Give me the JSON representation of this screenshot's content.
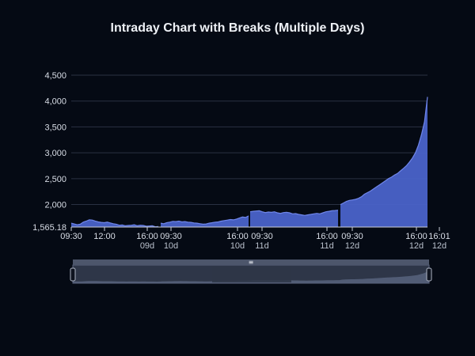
{
  "chart_data": {
    "type": "area",
    "title": "Intraday Chart with Breaks (Multiple Days)",
    "xlabel": "",
    "ylabel": "",
    "grid": true,
    "legend": "none",
    "ylim": [
      1565.18,
      4500
    ],
    "ymin_label": "1,565.18",
    "y_ticks": [
      "4,500",
      "4,000",
      "3,500",
      "3,000",
      "2,500",
      "2,000",
      "1,565.18"
    ],
    "x_ticks": [
      {
        "label": "09:30",
        "sub": ""
      },
      {
        "label": "12:00",
        "sub": ""
      },
      {
        "label": "16:00",
        "sub": "09d"
      },
      {
        "label": "09:30",
        "sub": "10d"
      },
      {
        "label": "16:00",
        "sub": "10d"
      },
      {
        "label": "09:30",
        "sub": "11d"
      },
      {
        "label": "16:00",
        "sub": "11d"
      },
      {
        "label": "09:30",
        "sub": "12d"
      },
      {
        "label": "16:00",
        "sub": "12d"
      },
      {
        "label": "16:01",
        "sub": "12d"
      }
    ],
    "series": [
      {
        "day": "09d",
        "values": [
          1640,
          1625,
          1610,
          1620,
          1660,
          1680,
          1705,
          1700,
          1680,
          1665,
          1655,
          1650,
          1660,
          1645,
          1630,
          1620,
          1600,
          1605,
          1590,
          1595,
          1600,
          1610,
          1590,
          1600,
          1595,
          1580,
          1585,
          1590,
          1570,
          1575
        ]
      },
      {
        "day": "10d",
        "values": [
          1640,
          1630,
          1650,
          1660,
          1675,
          1670,
          1680,
          1665,
          1670,
          1660,
          1655,
          1645,
          1640,
          1630,
          1620,
          1625,
          1640,
          1650,
          1660,
          1665,
          1680,
          1690,
          1700,
          1710,
          1705,
          1720,
          1740,
          1760,
          1750,
          1780
        ]
      },
      {
        "day": "11d",
        "values": [
          1860,
          1870,
          1875,
          1880,
          1860,
          1845,
          1855,
          1850,
          1860,
          1840,
          1830,
          1845,
          1850,
          1840,
          1820,
          1825,
          1810,
          1800,
          1790,
          1800,
          1810,
          1820,
          1830,
          1820,
          1840,
          1860,
          1870,
          1880,
          1885,
          1890
        ]
      },
      {
        "day": "12d",
        "values": [
          2000,
          2030,
          2060,
          2080,
          2090,
          2100,
          2120,
          2150,
          2200,
          2230,
          2260,
          2300,
          2340,
          2380,
          2420,
          2460,
          2500,
          2530,
          2570,
          2600,
          2650,
          2700,
          2750,
          2820,
          2900,
          3000,
          3150,
          3350,
          3600,
          4080
        ]
      }
    ]
  },
  "navigator": {
    "handle_glyph": "≡"
  }
}
